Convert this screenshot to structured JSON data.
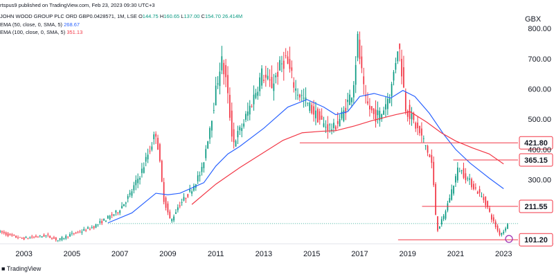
{
  "header": {
    "published": "rtspus9 published on TradingView.com, Feb 23, 2023 09:30 UTC+3",
    "ticker": "JOHN WOOD GROUP PLC ORD GBP0.0428571, 1M, LSE",
    "ohlc": {
      "o_label": "O",
      "o": "144.75",
      "h_label": "H",
      "h": "160.65",
      "l_label": "L",
      "l": "137.00",
      "c_label": "C",
      "c": "154.70",
      "extra": "26.414M"
    },
    "ema1": {
      "label": "EMA (50, close, 0, SMA, 5)",
      "value": "268.67"
    },
    "ema2": {
      "label": "EMA (100, close, 0, SMA, 5)",
      "value": "351.13"
    }
  },
  "footer": {
    "logo_text": "TradingView"
  },
  "chart_data": {
    "type": "candlestick",
    "unit": "GBX",
    "y_axis_ticks": [
      300,
      400,
      500,
      600,
      700,
      800
    ],
    "y_axis_tick_labels": [
      "300.00",
      "400.00",
      "500.00",
      "600.00",
      "700.00",
      "800.00"
    ],
    "x_axis_ticks": [
      "2003",
      "2005",
      "2007",
      "2009",
      "2011",
      "2013",
      "2015",
      "2017",
      "2019",
      "2021",
      "2023"
    ],
    "ylim": [
      88,
      830
    ],
    "xlim": [
      2002.0,
      2023.6
    ],
    "colors": {
      "up": "#089981",
      "down": "#f23645",
      "ema50": "#2962ff",
      "ema100": "#f23645",
      "level": "#f23645",
      "last": "#089981"
    },
    "horizontal_levels": [
      {
        "value": 421.8,
        "label": "421.80",
        "x_start": 2014.5
      },
      {
        "value": 365.15,
        "label": "365.15",
        "x_start": 2020.9
      },
      {
        "value": 211.55,
        "label": "211.55",
        "x_start": 2019.6
      },
      {
        "value": 101.2,
        "label": "101.20",
        "x_start": 2018.6
      }
    ],
    "price_path": [
      [
        2002.0,
        130
      ],
      [
        2002.5,
        115
      ],
      [
        2003.0,
        105
      ],
      [
        2003.5,
        110
      ],
      [
        2004.0,
        115
      ],
      [
        2004.5,
        100
      ],
      [
        2005.0,
        118
      ],
      [
        2005.5,
        130
      ],
      [
        2006.0,
        145
      ],
      [
        2006.5,
        170
      ],
      [
        2007.0,
        195
      ],
      [
        2007.5,
        250
      ],
      [
        2008.0,
        330
      ],
      [
        2008.6,
        460
      ],
      [
        2008.9,
        240
      ],
      [
        2009.2,
        160
      ],
      [
        2009.5,
        210
      ],
      [
        2010.0,
        260
      ],
      [
        2010.5,
        330
      ],
      [
        2011.0,
        550
      ],
      [
        2011.3,
        700
      ],
      [
        2011.5,
        630
      ],
      [
        2011.8,
        420
      ],
      [
        2012.2,
        480
      ],
      [
        2012.6,
        560
      ],
      [
        2013.0,
        650
      ],
      [
        2013.4,
        610
      ],
      [
        2013.8,
        680
      ],
      [
        2014.0,
        700
      ],
      [
        2014.4,
        600
      ],
      [
        2014.8,
        560
      ],
      [
        2015.2,
        520
      ],
      [
        2015.6,
        480
      ],
      [
        2016.0,
        470
      ],
      [
        2016.4,
        520
      ],
      [
        2016.8,
        600
      ],
      [
        2017.0,
        760
      ],
      [
        2017.3,
        560
      ],
      [
        2017.7,
        510
      ],
      [
        2018.0,
        520
      ],
      [
        2018.4,
        600
      ],
      [
        2018.7,
        760
      ],
      [
        2019.0,
        540
      ],
      [
        2019.4,
        480
      ],
      [
        2019.8,
        420
      ],
      [
        2020.1,
        350
      ],
      [
        2020.3,
        130
      ],
      [
        2020.6,
        180
      ],
      [
        2020.9,
        260
      ],
      [
        2021.2,
        340
      ],
      [
        2021.6,
        300
      ],
      [
        2021.9,
        270
      ],
      [
        2022.3,
        230
      ],
      [
        2022.6,
        170
      ],
      [
        2022.9,
        120
      ],
      [
        2023.1,
        130
      ],
      [
        2023.2,
        150
      ]
    ],
    "ema50": [
      [
        2006.5,
        157
      ],
      [
        2007.5,
        190
      ],
      [
        2008.5,
        255
      ],
      [
        2009.0,
        250
      ],
      [
        2009.5,
        255
      ],
      [
        2010.5,
        290
      ],
      [
        2011.0,
        345
      ],
      [
        2011.5,
        385
      ],
      [
        2012.0,
        410
      ],
      [
        2013.0,
        470
      ],
      [
        2014.0,
        540
      ],
      [
        2014.8,
        565
      ],
      [
        2015.5,
        540
      ],
      [
        2016.0,
        515
      ],
      [
        2016.5,
        525
      ],
      [
        2017.0,
        575
      ],
      [
        2017.6,
        585
      ],
      [
        2018.3,
        570
      ],
      [
        2018.8,
        595
      ],
      [
        2019.3,
        575
      ],
      [
        2019.9,
        520
      ],
      [
        2020.5,
        450
      ],
      [
        2021.0,
        400
      ],
      [
        2021.6,
        355
      ],
      [
        2022.4,
        305
      ],
      [
        2023.0,
        270
      ]
    ],
    "ema100": [
      [
        2010.0,
        218
      ],
      [
        2011.0,
        285
      ],
      [
        2012.0,
        340
      ],
      [
        2013.0,
        390
      ],
      [
        2013.8,
        430
      ],
      [
        2014.6,
        455
      ],
      [
        2015.4,
        460
      ],
      [
        2016.0,
        462
      ],
      [
        2016.8,
        478
      ],
      [
        2017.5,
        495
      ],
      [
        2018.5,
        515
      ],
      [
        2019.1,
        525
      ],
      [
        2019.8,
        490
      ],
      [
        2020.4,
        455
      ],
      [
        2021.0,
        428
      ],
      [
        2021.7,
        405
      ],
      [
        2022.4,
        385
      ],
      [
        2023.0,
        352
      ]
    ],
    "last_price": 154.7
  }
}
